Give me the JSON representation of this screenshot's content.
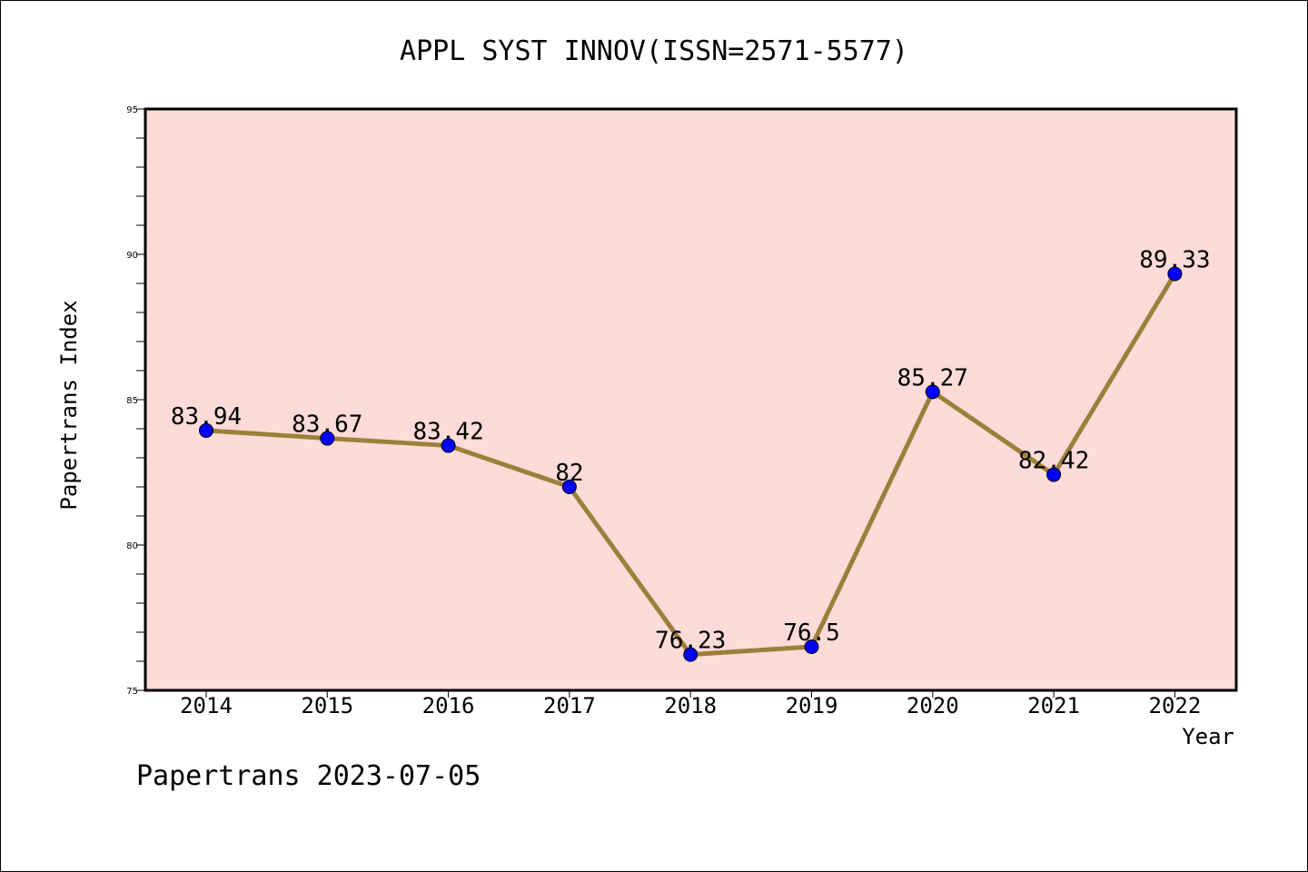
{
  "chart_data": {
    "type": "line",
    "title": "APPL SYST INNOV(ISSN=2571-5577)",
    "xlabel": "Year",
    "ylabel": "Papertrans Index",
    "x": [
      "2014",
      "2015",
      "2016",
      "2017",
      "2018",
      "2019",
      "2020",
      "2021",
      "2022"
    ],
    "series": [
      {
        "values": [
          83.94,
          83.67,
          83.42,
          82,
          76.23,
          76.5,
          85.27,
          82.42,
          89.33
        ],
        "labels": [
          "83.94",
          "83.67",
          "83.42",
          "82",
          "76.23",
          "76.5",
          "85.27",
          "82.42",
          "89.33"
        ]
      }
    ],
    "ylim": [
      75,
      95
    ],
    "yticks": [
      75,
      80,
      85,
      90,
      95
    ],
    "grid": false,
    "colors": {
      "plot_background": "#fddbd8",
      "line": "#9c7f3a",
      "marker": "#0000ff"
    }
  },
  "footer": {
    "text": "Papertrans 2023-07-05"
  }
}
